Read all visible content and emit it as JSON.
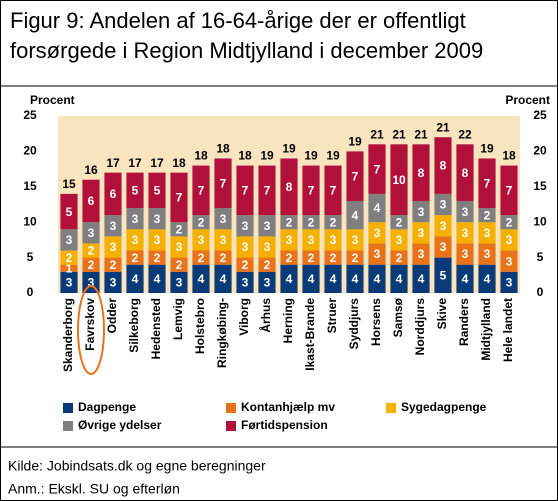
{
  "chart_data": {
    "type": "bar",
    "stacked": true,
    "title": [
      "Figur 9: Andelen af 16-64-årige der er offentligt",
      "forsørgede i Region Midtjylland i december 2009"
    ],
    "ylabel": "Procent",
    "y2label": "Procent",
    "categories": [
      "Skanderborg",
      "Favrskov",
      "Odder",
      "Silkeborg",
      "Hedensted",
      "Lemvig",
      "Holstebro",
      "Ringkøbing-",
      "Viborg",
      "Århus",
      "Herning",
      "Ikast-Brande",
      "Struer",
      "Syddjurs",
      "Horsens",
      "Samsø",
      "Norddjurs",
      "Skive",
      "Randers",
      "Midtjylland",
      "Hele landet"
    ],
    "series": [
      {
        "name": "Dagpenge",
        "color": "#0b3a78",
        "values": [
          3,
          3,
          3,
          4,
          4,
          3,
          4,
          4,
          3,
          3,
          4,
          4,
          4,
          4,
          4,
          4,
          4,
          5,
          4,
          4,
          3
        ]
      },
      {
        "name": "Kontanhjælp mv",
        "color": "#e8731a",
        "values": [
          1,
          2,
          2,
          2,
          2,
          2,
          2,
          2,
          2,
          2,
          2,
          2,
          2,
          2,
          3,
          2,
          3,
          3,
          3,
          3,
          3
        ]
      },
      {
        "name": "Sygedagpenge",
        "color": "#f5b000",
        "values": [
          2,
          2,
          3,
          3,
          3,
          3,
          3,
          3,
          3,
          3,
          3,
          3,
          3,
          3,
          3,
          3,
          3,
          3,
          3,
          3,
          3
        ]
      },
      {
        "name": "Øvrige ydelser",
        "color": "#7f7f7f",
        "values": [
          3,
          3,
          3,
          3,
          3,
          2,
          2,
          3,
          3,
          3,
          2,
          2,
          2,
          4,
          4,
          2,
          3,
          3,
          3,
          2,
          2
        ]
      },
      {
        "name": "Førtidspension",
        "color": "#b0103a",
        "values": [
          5,
          6,
          6,
          5,
          5,
          7,
          7,
          7,
          7,
          7,
          8,
          7,
          7,
          7,
          7,
          10,
          8,
          8,
          8,
          7,
          7
        ]
      }
    ],
    "totals": [
      15,
      16,
      17,
      17,
      17,
      18,
      18,
      18,
      18,
      19,
      19,
      19,
      19,
      19,
      21,
      21,
      21,
      21,
      22,
      19,
      18
    ],
    "ylim": [
      0,
      25
    ],
    "yticks": [
      0,
      5,
      10,
      15,
      20,
      25
    ],
    "source": "Kilde: Jobindsats.dk og egne beregninger",
    "note": "Anm.: Ekskl. SU og efterløn"
  }
}
